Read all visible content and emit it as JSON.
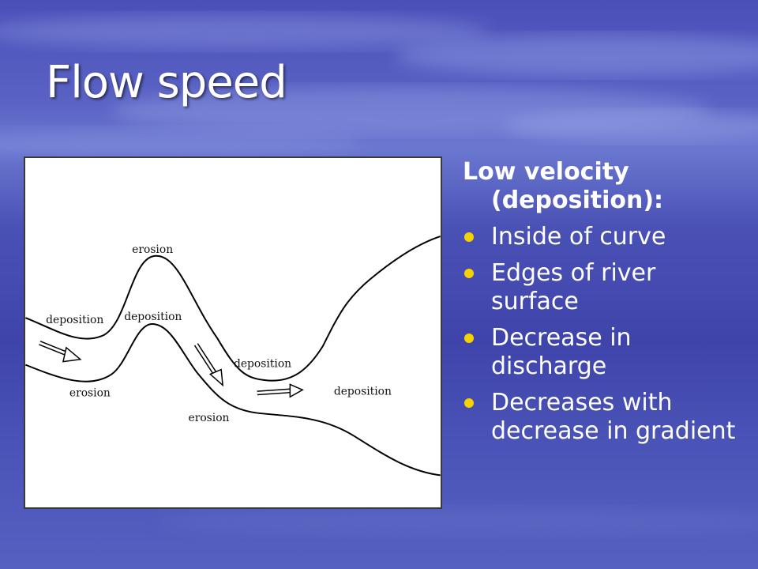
{
  "slide": {
    "title": "Flow speed",
    "background_color": "#4a51b5",
    "bullet_color": "#f5d200"
  },
  "diagram": {
    "labels": {
      "erosion_top": "erosion",
      "deposition_left": "deposition",
      "deposition_center": "deposition",
      "deposition_mid": "deposition",
      "deposition_right": "deposition",
      "erosion_left": "erosion",
      "erosion_bottom": "erosion"
    }
  },
  "panel": {
    "heading_line1": "Low velocity",
    "heading_line2": "(deposition):",
    "bullets": [
      "Inside of curve",
      "Edges of river surface",
      "Decrease in discharge",
      "Decreases with decrease in gradient"
    ]
  }
}
